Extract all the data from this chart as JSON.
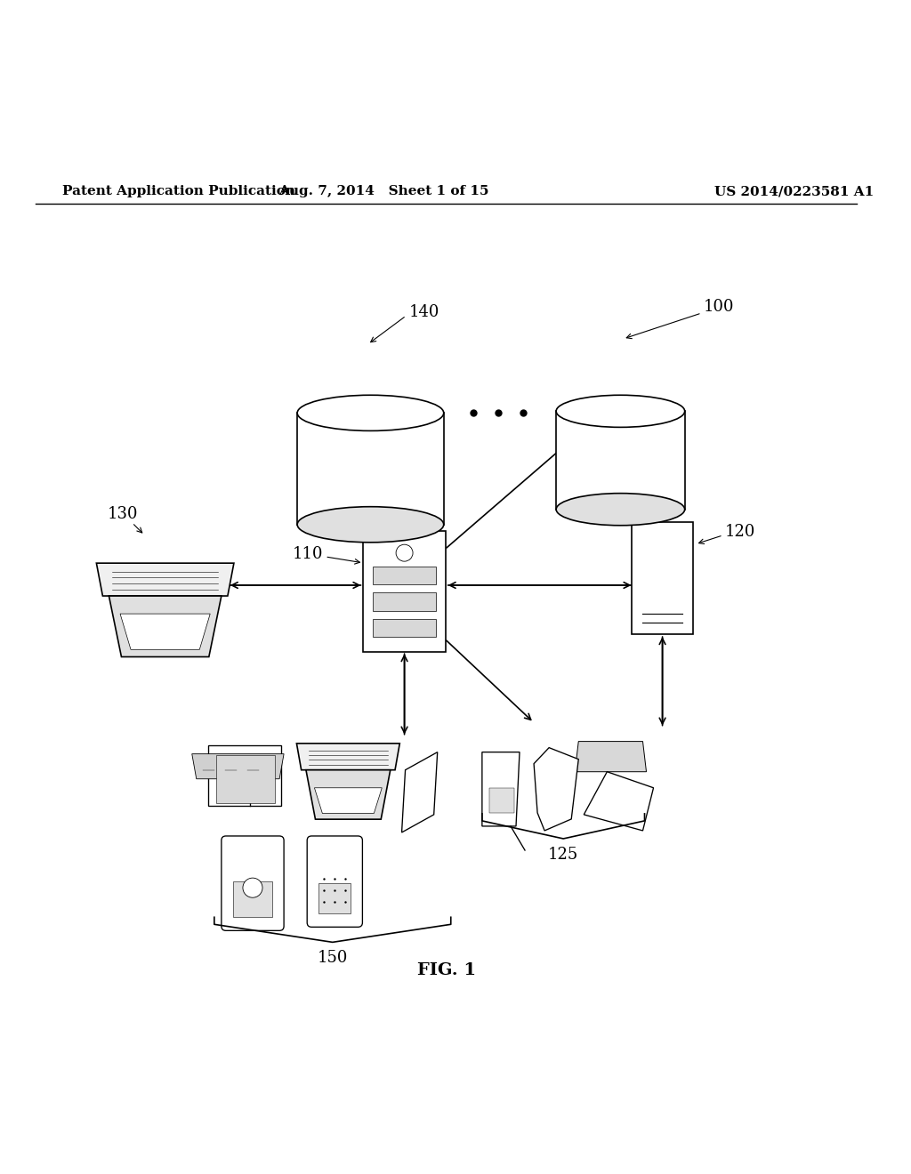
{
  "bg_color": "#ffffff",
  "header_left": "Patent Application Publication",
  "header_mid": "Aug. 7, 2014   Sheet 1 of 15",
  "header_right": "US 2014/0223581 A1",
  "footer_label": "FIG. 1"
}
